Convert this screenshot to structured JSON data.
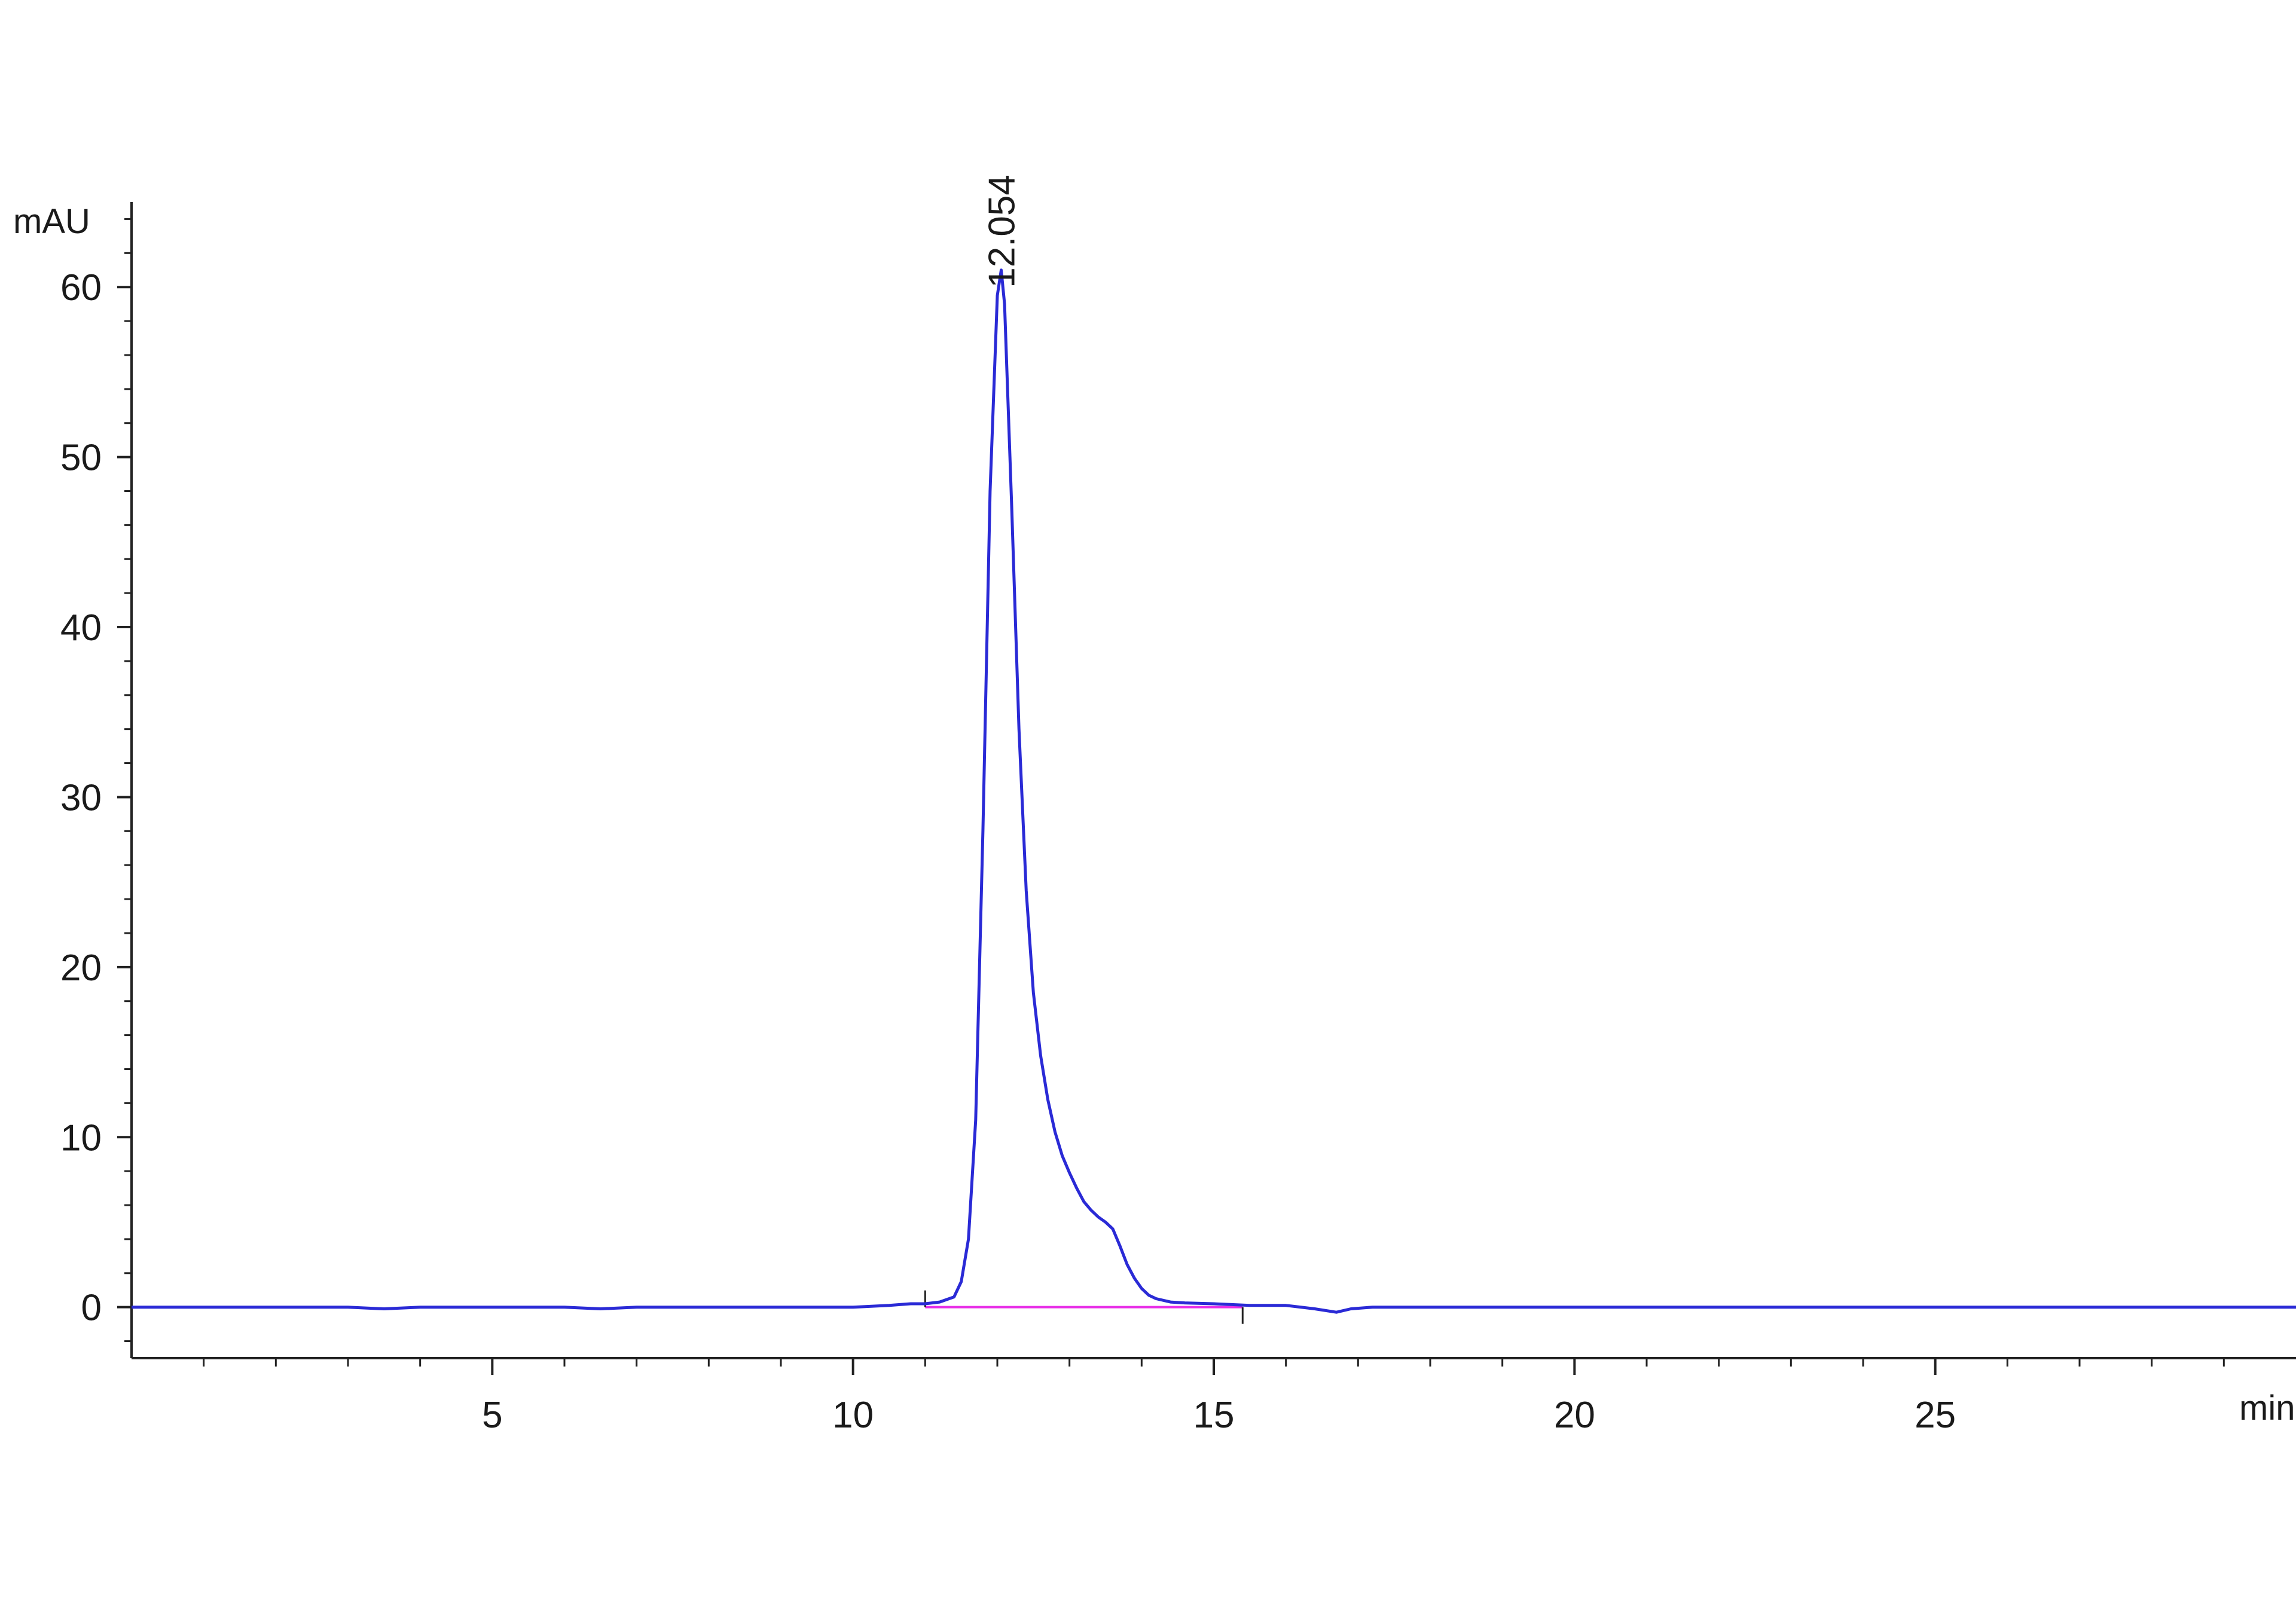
{
  "chart_data": {
    "type": "line",
    "title": "",
    "xlabel": "min",
    "ylabel": "mAU",
    "xlim": [
      0,
      30
    ],
    "ylim": [
      -3,
      65
    ],
    "x_ticks": [
      5,
      10,
      15,
      20,
      25
    ],
    "y_ticks": [
      0,
      10,
      20,
      30,
      40,
      50,
      60
    ],
    "x_tick_labels": [
      "5",
      "10",
      "15",
      "20",
      "25"
    ],
    "y_tick_labels": [
      "0",
      "10",
      "20",
      "30",
      "40",
      "50",
      "60"
    ],
    "grid": false,
    "series": [
      {
        "color": "#2a2ad6",
        "x": [
          0,
          1,
          2,
          3,
          3.5,
          4,
          5,
          6,
          6.5,
          7,
          8,
          9,
          10,
          10.5,
          10.8,
          11.0,
          11.2,
          11.4,
          11.5,
          11.6,
          11.7,
          11.8,
          11.9,
          12.0,
          12.054,
          12.1,
          12.2,
          12.3,
          12.4,
          12.5,
          12.6,
          12.7,
          12.8,
          12.9,
          13.0,
          13.1,
          13.2,
          13.3,
          13.4,
          13.5,
          13.6,
          13.7,
          13.8,
          13.9,
          14.0,
          14.1,
          14.2,
          14.4,
          14.6,
          15.0,
          15.5,
          16.0,
          16.4,
          16.7,
          16.9,
          17.2,
          17.6,
          18,
          19,
          20,
          21,
          22,
          23,
          24,
          25,
          26,
          27,
          28,
          29,
          30
        ],
        "y": [
          0,
          0,
          0,
          0,
          -0.1,
          0,
          0,
          0,
          -0.1,
          0,
          0,
          0,
          0,
          0.1,
          0.2,
          0.2,
          0.3,
          0.6,
          1.5,
          4.0,
          11.0,
          28.0,
          48.0,
          59.5,
          61.0,
          59.0,
          47.0,
          34.0,
          24.5,
          18.5,
          14.8,
          12.2,
          10.3,
          8.9,
          7.9,
          7.0,
          6.2,
          5.7,
          5.3,
          5.0,
          4.6,
          3.6,
          2.5,
          1.7,
          1.1,
          0.7,
          0.5,
          0.3,
          0.25,
          0.2,
          0.1,
          0.1,
          -0.1,
          -0.3,
          -0.1,
          0.0,
          0.0,
          0.0,
          0.0,
          0.0,
          0.0,
          0.0,
          0.0,
          0.0,
          0.0,
          0.0,
          0.0,
          0.0,
          0.0,
          0.0
        ]
      }
    ],
    "baseline": {
      "color": "#e830e8",
      "x": [
        11.0,
        15.4
      ],
      "y": [
        0,
        0
      ]
    },
    "integration_marks": [
      11.0,
      15.4
    ],
    "annotations": [
      {
        "text": "12.054",
        "x": 12.054,
        "y": 61.0
      }
    ]
  }
}
